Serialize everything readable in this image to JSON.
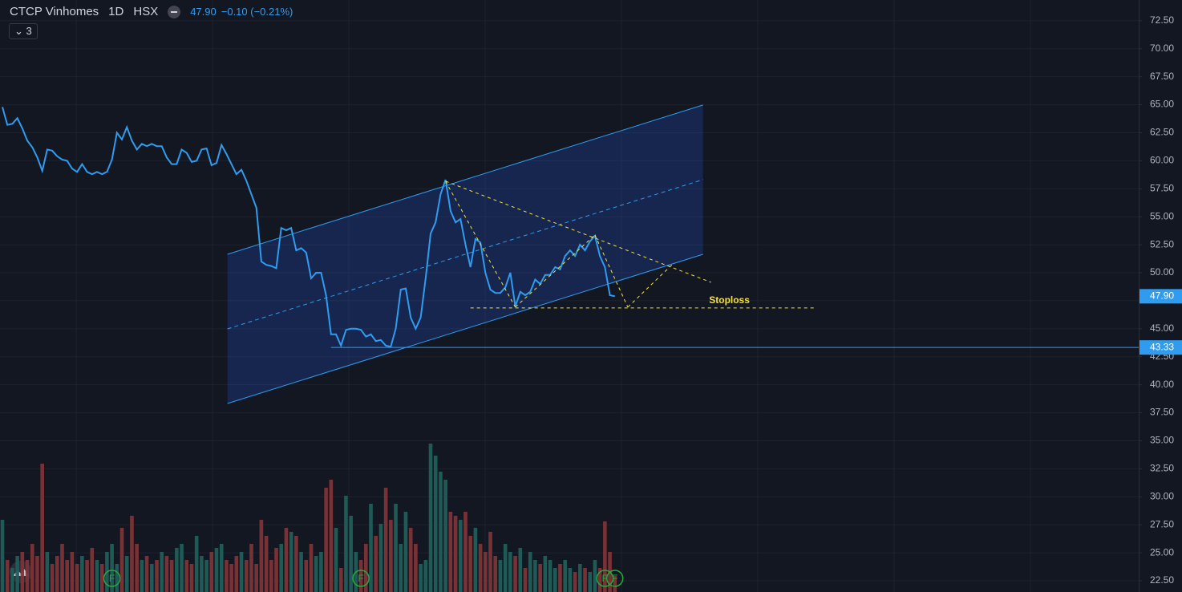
{
  "chart_data": {
    "type": "line",
    "title": "CTCP Vinhomes",
    "interval": "1D",
    "exchange": "HSX",
    "indicator_count": "3",
    "change": "−0.10 (−0.21%)",
    "last_price": {
      "value": 47.9,
      "label": "47.90"
    },
    "support": {
      "value": 43.33,
      "label": "43.33",
      "from": 66
    },
    "color": "#2f9cf0",
    "values": [
      64.8,
      63.2,
      63.3,
      63.8,
      62.9,
      61.8,
      61.2,
      60.3,
      59.1,
      61.0,
      60.9,
      60.4,
      60.1,
      60.0,
      59.3,
      59.0,
      59.7,
      59.0,
      58.8,
      59.0,
      58.8,
      59.0,
      60.1,
      62.5,
      61.9,
      63.0,
      61.8,
      61.0,
      61.5,
      61.3,
      61.5,
      61.3,
      61.3,
      60.3,
      59.7,
      59.7,
      61.0,
      60.7,
      59.9,
      60.0,
      61.0,
      61.1,
      59.6,
      59.8,
      61.4,
      60.6,
      59.7,
      58.8,
      59.2,
      58.2,
      57.0,
      55.8,
      51.0,
      50.7,
      50.6,
      50.4,
      54.0,
      53.8,
      54.0,
      52.0,
      52.2,
      51.8,
      49.5,
      50.0,
      50.0,
      48.0,
      44.5,
      44.5,
      43.5,
      44.9,
      45.0,
      45.0,
      44.9,
      44.3,
      44.5,
      43.9,
      44.0,
      43.5,
      43.4,
      45.0,
      48.5,
      48.6,
      46.0,
      45.0,
      46.0,
      49.5,
      53.5,
      54.5,
      57.0,
      58.3,
      55.5,
      54.5,
      54.8,
      52.5,
      50.5,
      53.0,
      52.7,
      50.0,
      48.5,
      48.2,
      48.2,
      48.7,
      50.0,
      47.0,
      48.3,
      48.0,
      48.3,
      49.4,
      49.0,
      49.8,
      49.8,
      50.5,
      50.3,
      51.5,
      52.0,
      51.5,
      52.5,
      52.0,
      52.8,
      53.3,
      51.5,
      50.5,
      48.0,
      47.9
    ],
    "volume": [
      90,
      40,
      30,
      45,
      50,
      40,
      60,
      45,
      160,
      50,
      35,
      45,
      60,
      40,
      50,
      35,
      45,
      40,
      55,
      40,
      35,
      50,
      60,
      35,
      80,
      45,
      95,
      60,
      40,
      45,
      35,
      40,
      50,
      45,
      40,
      55,
      60,
      40,
      35,
      70,
      45,
      40,
      50,
      55,
      60,
      40,
      35,
      45,
      50,
      40,
      60,
      35,
      90,
      70,
      40,
      55,
      60,
      80,
      75,
      70,
      50,
      40,
      60,
      45,
      50,
      130,
      140,
      80,
      30,
      120,
      95,
      50,
      40,
      60,
      110,
      70,
      85,
      130,
      90,
      110,
      60,
      100,
      80,
      60,
      35,
      40,
      185,
      170,
      150,
      140,
      100,
      95,
      90,
      100,
      70,
      80,
      60,
      50,
      75,
      45,
      40,
      60,
      50,
      45,
      55,
      30,
      50,
      40,
      35,
      45,
      40,
      30,
      35,
      40,
      30,
      25,
      35,
      30,
      25,
      40,
      30,
      88,
      50,
      20
    ],
    "markers": [
      "F",
      "F",
      "F",
      "F"
    ],
    "marker_at": [
      22,
      72,
      121,
      123
    ],
    "channel": {
      "upper": [
        [
          45.2,
          51.65
        ],
        [
          140.7,
          64.98
        ]
      ],
      "lower": [
        [
          45.2,
          38.33
        ],
        [
          140.7,
          51.65
        ]
      ]
    },
    "pattern": [
      [
        [
          89,
          58.17
        ],
        [
          103,
          46.93
        ]
      ],
      [
        [
          89,
          58.17
        ],
        [
          142.3,
          49.15
        ]
      ],
      [
        [
          103,
          46.93
        ],
        [
          119,
          53.37
        ]
      ],
      [
        [
          119,
          53.37
        ],
        [
          125.6,
          46.93
        ]
      ],
      [
        [
          125.6,
          46.93
        ],
        [
          134.5,
          50.72
        ]
      ]
    ],
    "stoploss": {
      "label": "Stoploss",
      "value": 46.86,
      "from": 94,
      "to": 163.3,
      "label_at": 146
    },
    "xlim": [
      0,
      228.2
    ],
    "ylim": [
      21.5,
      74.35
    ],
    "yticks": [
      {
        "value": 22.5,
        "label": "22.50"
      },
      {
        "value": 25,
        "label": "25.00"
      },
      {
        "value": 27.5,
        "label": "27.50"
      },
      {
        "value": 30,
        "label": "30.00"
      },
      {
        "value": 32.5,
        "label": "32.50"
      },
      {
        "value": 35,
        "label": "35.00"
      },
      {
        "value": 37.5,
        "label": "37.50"
      },
      {
        "value": 40,
        "label": "40.00"
      },
      {
        "value": 42.5,
        "label": "42.50"
      },
      {
        "value": 45,
        "label": "45.00"
      },
      {
        "value": 47.5,
        "label": "47.50"
      },
      {
        "value": 50,
        "label": "50.00"
      },
      {
        "value": 52.5,
        "label": "52.50"
      },
      {
        "value": 55,
        "label": "55.00"
      },
      {
        "value": 57.5,
        "label": "57.50"
      },
      {
        "value": 60,
        "label": "60.00"
      },
      {
        "value": 62.5,
        "label": "62.50"
      },
      {
        "value": 65,
        "label": "65.00"
      },
      {
        "value": 67.5,
        "label": "67.50"
      },
      {
        "value": 70,
        "label": "70.00"
      },
      {
        "value": 72.5,
        "label": "72.50"
      }
    ],
    "grid": true
  }
}
